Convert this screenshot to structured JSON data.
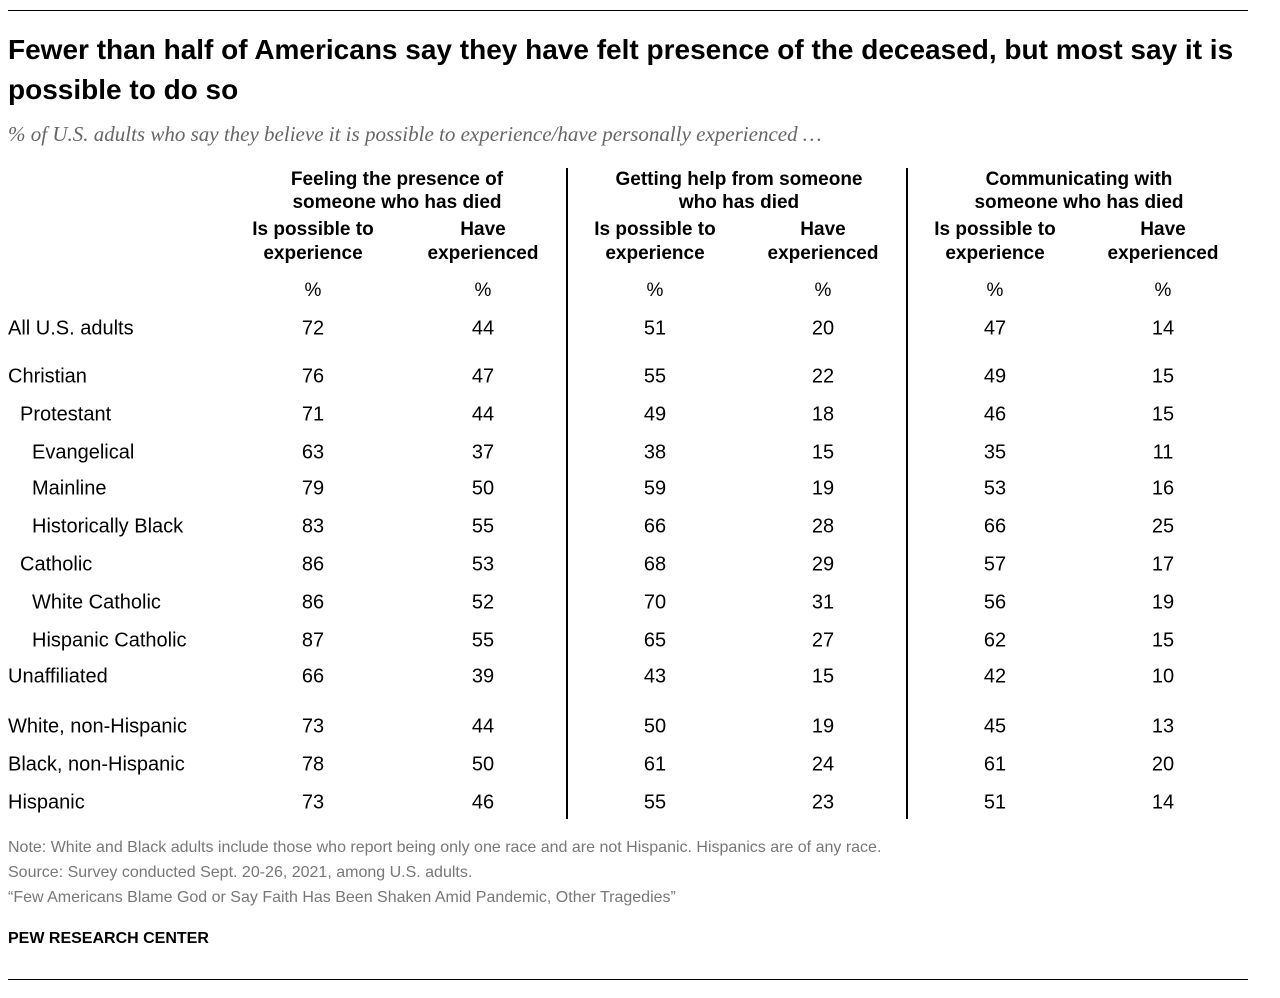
{
  "header": {
    "title": "Fewer than half of Americans say they have felt presence of the deceased, but most say it is possible to do so",
    "subtitle": "% of U.S. adults who say they believe it is possible to experience/have personally experienced …"
  },
  "table": {
    "groups": [
      {
        "title": "Feeling the presence of someone who has died",
        "columns": [
          "Is possible to experience",
          "Have experienced"
        ]
      },
      {
        "title": "Getting help from someone who has died",
        "columns": [
          "Is possible to experience",
          "Have experienced"
        ]
      },
      {
        "title": "Communicating with someone who has died",
        "columns": [
          "Is possible to experience",
          "Have experienced"
        ]
      }
    ],
    "units": [
      "%",
      "%",
      "%",
      "%",
      "%",
      "%"
    ],
    "rows": [
      {
        "label": "All U.S. adults",
        "values": [
          72,
          44,
          51,
          20,
          47,
          14
        ]
      },
      {
        "label": "Christian",
        "values": [
          76,
          47,
          55,
          22,
          49,
          15
        ]
      },
      {
        "label": "Protestant",
        "values": [
          71,
          44,
          49,
          18,
          46,
          15
        ]
      },
      {
        "label": "Evangelical",
        "values": [
          63,
          37,
          38,
          15,
          35,
          11
        ]
      },
      {
        "label": "Mainline",
        "values": [
          79,
          50,
          59,
          19,
          53,
          16
        ]
      },
      {
        "label": "Historically Black",
        "values": [
          83,
          55,
          66,
          28,
          66,
          25
        ]
      },
      {
        "label": "Catholic",
        "values": [
          86,
          53,
          68,
          29,
          57,
          17
        ]
      },
      {
        "label": "White Catholic",
        "values": [
          86,
          52,
          70,
          31,
          56,
          19
        ]
      },
      {
        "label": "Hispanic Catholic",
        "values": [
          87,
          55,
          65,
          27,
          62,
          15
        ]
      },
      {
        "label": "Unaffiliated",
        "values": [
          66,
          39,
          43,
          15,
          42,
          10
        ]
      },
      {
        "label": "White, non-Hispanic",
        "values": [
          73,
          44,
          50,
          19,
          45,
          13
        ]
      },
      {
        "label": "Black, non-Hispanic",
        "values": [
          78,
          50,
          61,
          24,
          61,
          20
        ]
      },
      {
        "label": "Hispanic",
        "values": [
          73,
          46,
          55,
          23,
          51,
          14
        ]
      }
    ]
  },
  "footer": {
    "note": "Note: White and Black adults include those who report being only one race and are not Hispanic. Hispanics are of any race.",
    "source": "Source: Survey conducted Sept. 20-26, 2021, among U.S. adults.",
    "report": "“Few Americans Blame God or Say Faith Has Been Shaken Amid Pandemic, Other Tragedies”",
    "brand": "PEW RESEARCH CENTER"
  }
}
